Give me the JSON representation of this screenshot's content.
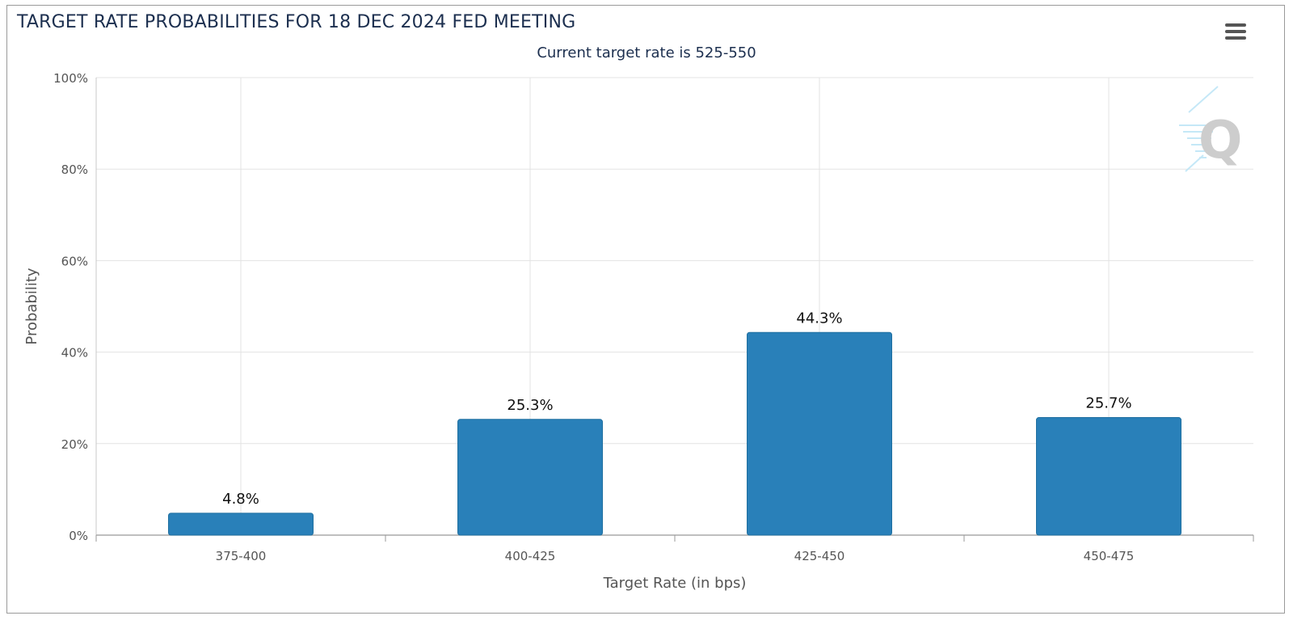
{
  "title": "TARGET RATE PROBABILITIES FOR 18 DEC 2024 FED MEETING",
  "subtitle": "Current target rate is 525-550",
  "chart_data": {
    "type": "bar",
    "categories": [
      "375-400",
      "400-425",
      "425-450",
      "450-475"
    ],
    "values": [
      4.8,
      25.3,
      44.3,
      25.7
    ],
    "data_labels": [
      "4.8%",
      "25.3%",
      "44.3%",
      "25.7%"
    ],
    "xlabel": "Target Rate (in bps)",
    "ylabel": "Probability",
    "ylim": [
      0,
      100
    ],
    "yticks": [
      0,
      20,
      40,
      60,
      80,
      100
    ],
    "ytick_labels": [
      "0%",
      "20%",
      "40%",
      "60%",
      "80%",
      "100%"
    ],
    "grid": true,
    "bar_color": "#2980b9",
    "watermark_icon": "q-logo-icon"
  }
}
